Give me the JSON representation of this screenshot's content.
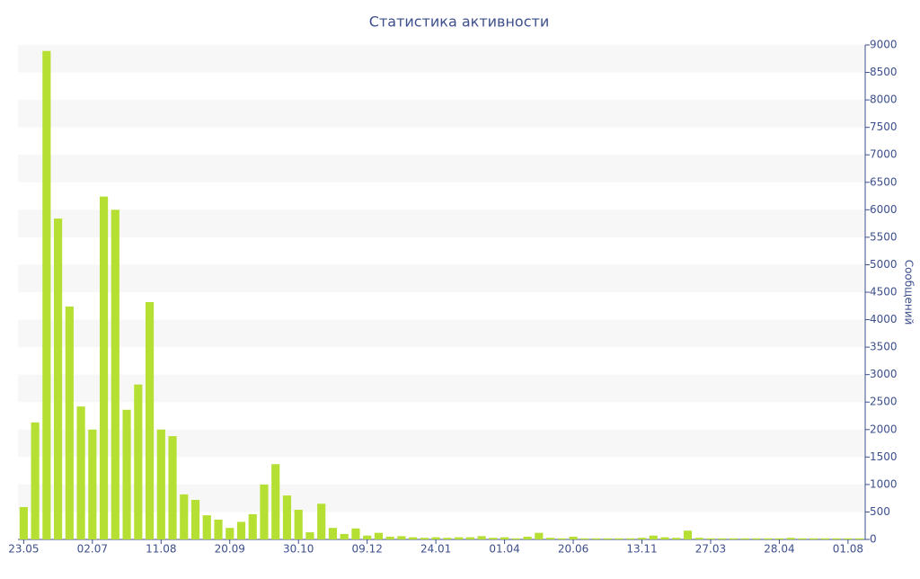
{
  "chart_data": {
    "type": "bar",
    "title": "Статистика активности",
    "y_axis_label": "Сообщений",
    "categories": [
      "23.05",
      null,
      null,
      null,
      null,
      null,
      "02.07",
      null,
      null,
      null,
      null,
      null,
      "11.08",
      null,
      null,
      null,
      null,
      null,
      "20.09",
      null,
      null,
      null,
      null,
      null,
      "30.10",
      null,
      null,
      null,
      null,
      null,
      "09.12",
      null,
      null,
      null,
      null,
      null,
      "24.01",
      null,
      null,
      null,
      null,
      null,
      "01.04",
      null,
      null,
      null,
      null,
      null,
      "20.06",
      null,
      null,
      null,
      null,
      null,
      "13.11",
      null,
      null,
      null,
      null,
      null,
      "27.03",
      null,
      null,
      null,
      null,
      null,
      "28.04",
      null,
      null,
      null,
      null,
      null,
      "01.08",
      null
    ],
    "values": [
      590,
      2130,
      8890,
      5840,
      4240,
      2420,
      2000,
      6240,
      6000,
      2360,
      2820,
      4320,
      2000,
      1880,
      820,
      720,
      440,
      360,
      210,
      320,
      460,
      1000,
      1370,
      800,
      540,
      130,
      650,
      210,
      100,
      200,
      70,
      120,
      50,
      60,
      40,
      30,
      40,
      30,
      40,
      40,
      60,
      30,
      40,
      20,
      50,
      120,
      30,
      20,
      50,
      20,
      20,
      20,
      20,
      20,
      30,
      70,
      40,
      30,
      160,
      30,
      20,
      20,
      20,
      20,
      20,
      20,
      20,
      30,
      20,
      20,
      20,
      20,
      20,
      20
    ],
    "color": "#b5e033",
    "ylim": [
      0,
      9000
    ],
    "yticks": [
      0,
      500,
      1000,
      1500,
      2000,
      2500,
      3000,
      3500,
      4000,
      4500,
      5000,
      5500,
      6000,
      6500,
      7000,
      7500,
      8000,
      8500,
      9000
    ],
    "grid": "alternate-bands",
    "y_axis_side": "right"
  }
}
